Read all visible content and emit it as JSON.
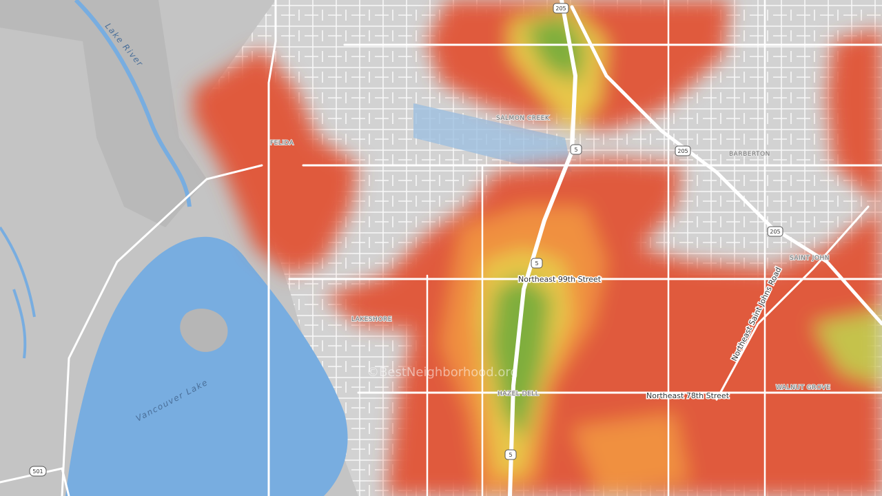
{
  "map": {
    "water_labels": [
      "Lake River",
      "Vancouver Lake"
    ],
    "neighborhoods": [
      "FELIDA",
      "SALMON CREEK",
      "BARBERTON",
      "SAINT JOHN",
      "LAKESHORE",
      "HAZEL DELL",
      "WALNUT GROVE"
    ],
    "streets": [
      "Northeast 99th Street",
      "Northeast 78th Street",
      "Northeast Saint Johns Road"
    ],
    "shields": [
      "205",
      "205",
      "205",
      "5",
      "5",
      "5",
      "501"
    ],
    "watermark": "©BestNeighborhood.org"
  }
}
